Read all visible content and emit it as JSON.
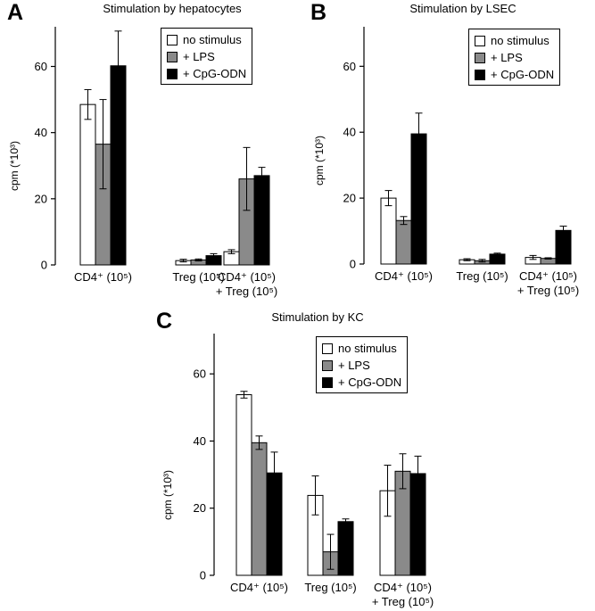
{
  "chart_data": [
    {
      "type": "bar",
      "panel": "A",
      "title": "Stimulation by hepatocytes",
      "ylabel": "cpm (*10³)",
      "ylim": [
        0,
        72
      ],
      "yticks": [
        "0",
        "20",
        "40",
        "60"
      ],
      "categories": [
        {
          "line1": "CD4⁺ (10⁵)",
          "line2": ""
        },
        {
          "line1": "Treg (10⁵)",
          "line2": ""
        },
        {
          "line1": "CD4⁺ (10⁵)",
          "line2": "+ Treg (10⁵)"
        }
      ],
      "series": [
        {
          "name": "no stimulus",
          "color": "#ffffff",
          "values": [
            48.5,
            1.3,
            4.0
          ],
          "errors": [
            4.5,
            0.4,
            0.6
          ]
        },
        {
          "name": "+ LPS",
          "color": "#8a8a8a",
          "values": [
            36.5,
            1.5,
            26.0
          ],
          "errors": [
            13.5,
            0.3,
            9.5
          ]
        },
        {
          "name": "+ CpG-ODN",
          "color": "#000000",
          "values": [
            60.2,
            2.8,
            27.0
          ],
          "errors": [
            10.5,
            0.6,
            2.5
          ]
        }
      ],
      "legend_position": "top-right"
    },
    {
      "type": "bar",
      "panel": "B",
      "title": "Stimulation by LSEC",
      "ylabel": "cpm (*10³)",
      "ylim": [
        0,
        72
      ],
      "yticks": [
        "0",
        "20",
        "40",
        "60"
      ],
      "categories": [
        {
          "line1": "CD4⁺ (10⁵)",
          "line2": ""
        },
        {
          "line1": "Treg (10⁵)",
          "line2": ""
        },
        {
          "line1": "CD4⁺ (10⁵)",
          "line2": "+ Treg (10⁵)"
        }
      ],
      "series": [
        {
          "name": "no stimulus",
          "color": "#ffffff",
          "values": [
            20.0,
            1.3,
            2.0
          ],
          "errors": [
            2.3,
            0.3,
            0.6
          ]
        },
        {
          "name": "+ LPS",
          "color": "#8a8a8a",
          "values": [
            13.2,
            1.0,
            1.7
          ],
          "errors": [
            1.2,
            0.4,
            0.2
          ]
        },
        {
          "name": "+ CpG-ODN",
          "color": "#000000",
          "values": [
            39.5,
            3.0,
            10.2
          ],
          "errors": [
            6.3,
            0.3,
            1.3
          ]
        }
      ],
      "legend_position": "top-right"
    },
    {
      "type": "bar",
      "panel": "C",
      "title": "Stimulation by KC",
      "ylabel": "cpm (*10³)",
      "ylim": [
        0,
        72
      ],
      "yticks": [
        "0",
        "20",
        "40",
        "60"
      ],
      "categories": [
        {
          "line1": "CD4⁺ (10⁵)",
          "line2": ""
        },
        {
          "line1": "Treg (10⁵)",
          "line2": ""
        },
        {
          "line1": "CD4⁺ (10⁵)",
          "line2": "+ Treg (10⁵)"
        }
      ],
      "series": [
        {
          "name": "no stimulus",
          "color": "#ffffff",
          "values": [
            53.8,
            23.8,
            25.2
          ],
          "errors": [
            1.0,
            5.8,
            7.6
          ]
        },
        {
          "name": "+ LPS",
          "color": "#8a8a8a",
          "values": [
            39.5,
            7.0,
            31.0
          ],
          "errors": [
            2.0,
            5.2,
            5.2
          ]
        },
        {
          "name": "+ CpG-ODN",
          "color": "#000000",
          "values": [
            30.5,
            16.0,
            30.3
          ],
          "errors": [
            6.2,
            0.8,
            5.2
          ]
        }
      ],
      "legend_position": "top-right"
    }
  ]
}
